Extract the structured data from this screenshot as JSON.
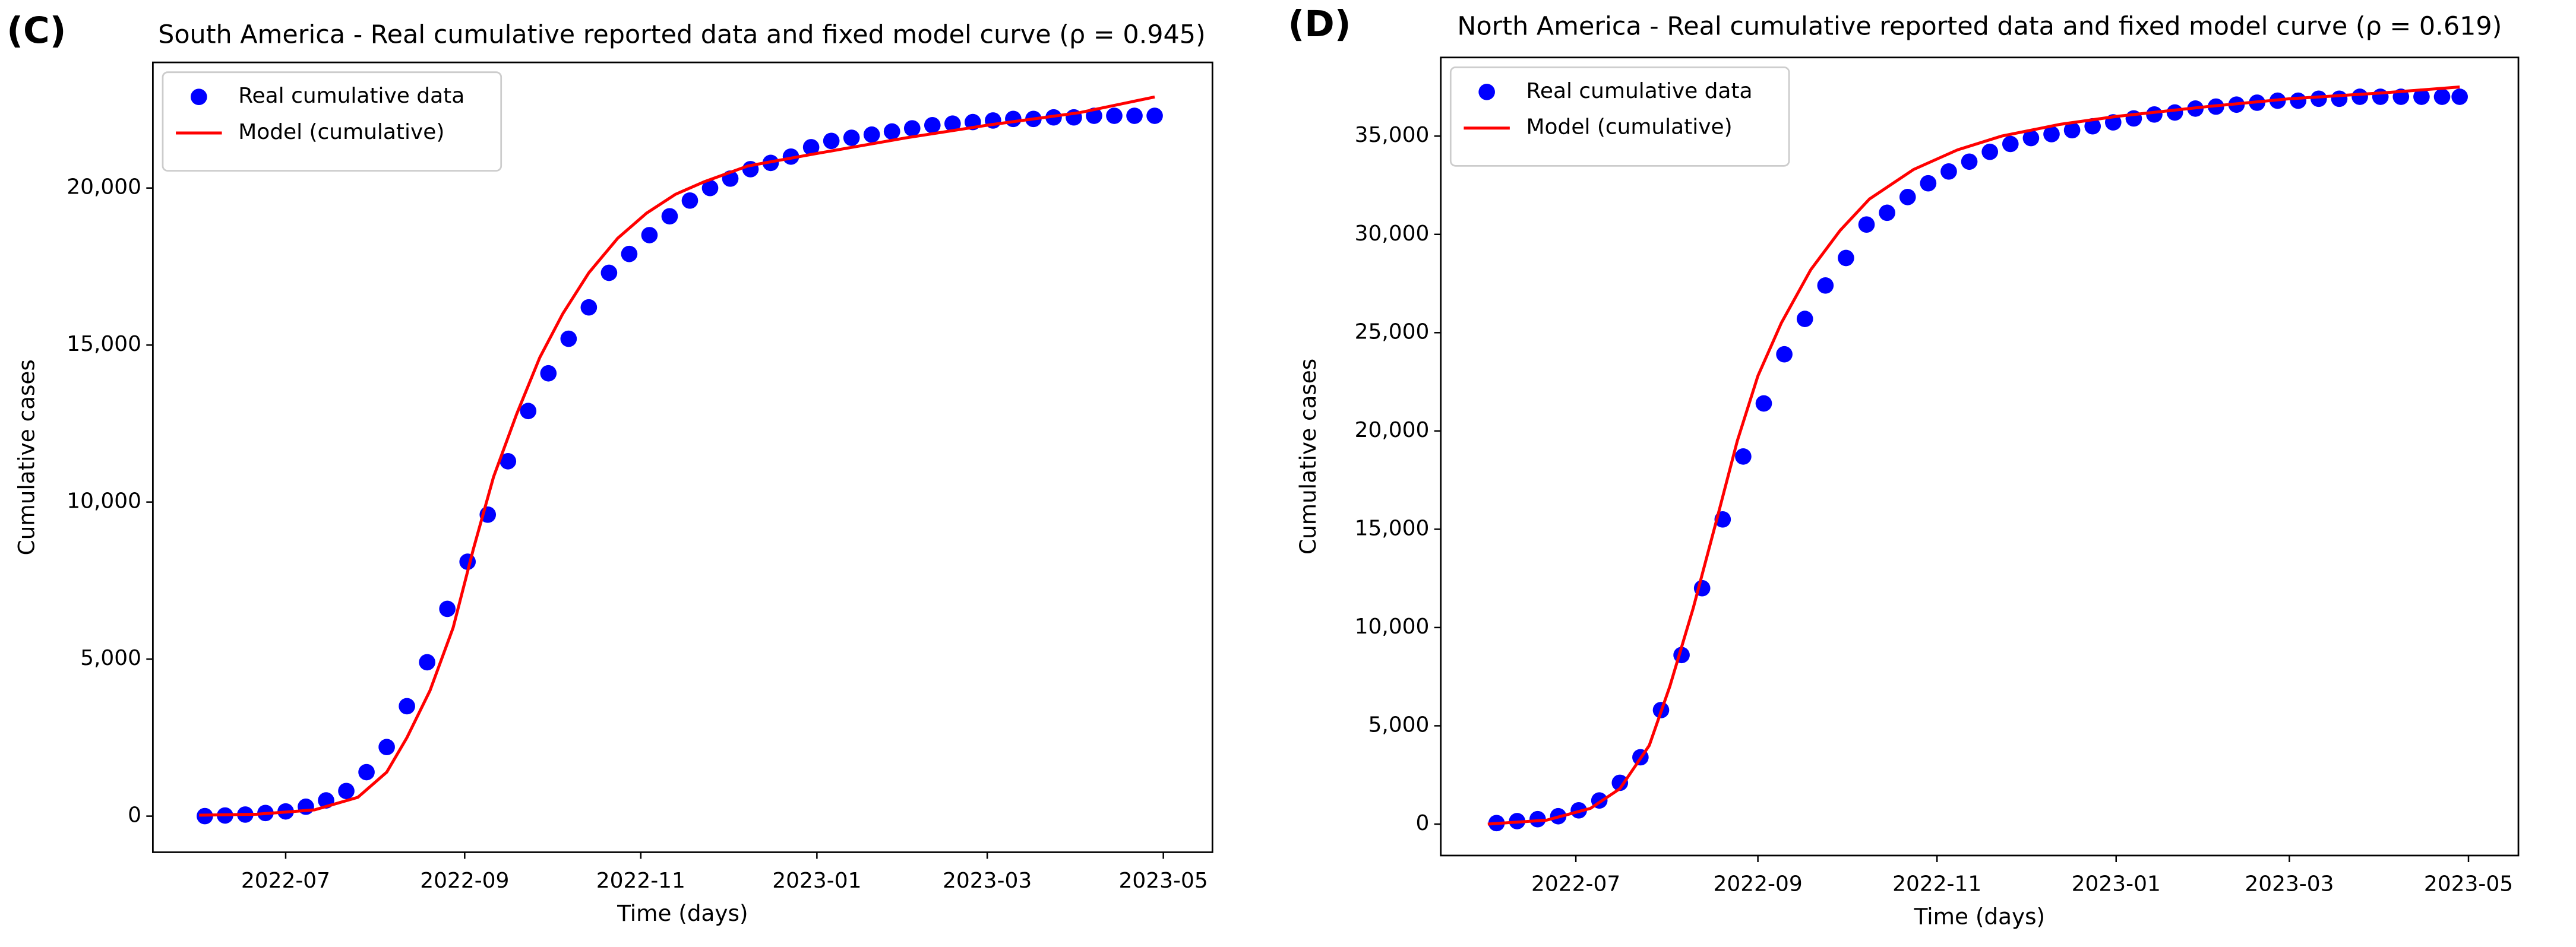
{
  "chart_data": [
    {
      "type": "line",
      "label": "(C)",
      "title": "South America - Real cumulative reported data and fixed model curve (ρ = 0.945)",
      "x_label": "Time (days)",
      "y_label": "Cumulative cases",
      "xlim": [
        -16,
        351
      ],
      "xticks": [
        {
          "value": 30,
          "label": "2022-07"
        },
        {
          "value": 92,
          "label": "2022-09"
        },
        {
          "value": 153,
          "label": "2022-11"
        },
        {
          "value": 214,
          "label": "2023-01"
        },
        {
          "value": 273,
          "label": "2023-03"
        },
        {
          "value": 334,
          "label": "2023-05"
        }
      ],
      "ylim": [
        -1150,
        24000
      ],
      "yticks": [
        0,
        {
          "value": 5000,
          "label": "5,000"
        },
        {
          "value": 10000,
          "label": "10,000"
        },
        {
          "value": 15000,
          "label": "15,000"
        },
        {
          "value": 20000,
          "label": "20,000"
        }
      ],
      "legend": "upper left",
      "grid": false,
      "series": [
        {
          "name": "Real cumulative data",
          "kind": "scatter",
          "color": "#0000ff",
          "x": [
            2,
            9,
            16,
            23,
            30,
            37,
            44,
            51,
            58,
            65,
            72,
            79,
            86,
            93,
            100,
            107,
            114,
            121,
            128,
            135,
            142,
            149,
            156,
            163,
            170,
            177,
            184,
            191,
            198,
            205,
            212,
            219,
            226,
            233,
            240,
            247,
            254,
            261,
            268,
            275,
            282,
            289,
            296,
            303,
            310,
            317,
            324,
            331
          ],
          "values": [
            0,
            20,
            50,
            100,
            150,
            300,
            500,
            800,
            1400,
            2200,
            3500,
            4900,
            6600,
            8100,
            9600,
            11300,
            12900,
            14100,
            15200,
            16200,
            17300,
            17900,
            18500,
            19100,
            19600,
            20000,
            20300,
            20600,
            20800,
            21000,
            21300,
            21500,
            21600,
            21700,
            21800,
            21900,
            22000,
            22050,
            22100,
            22150,
            22200,
            22200,
            22250,
            22250,
            22300,
            22300,
            22300,
            22300
          ]
        },
        {
          "name": "Model (cumulative)",
          "kind": "line",
          "color": "#ff0000",
          "x": [
            0,
            20,
            40,
            55,
            65,
            72,
            80,
            88,
            95,
            102,
            110,
            118,
            126,
            135,
            145,
            155,
            165,
            175,
            190,
            214,
            245,
            273,
            305,
            331
          ],
          "values": [
            30,
            60,
            200,
            600,
            1400,
            2500,
            4000,
            6000,
            8500,
            10800,
            12800,
            14600,
            16000,
            17300,
            18400,
            19200,
            19800,
            20200,
            20700,
            21100,
            21600,
            22000,
            22400,
            22900
          ]
        }
      ]
    },
    {
      "type": "line",
      "label": "(D)",
      "title": "North America - Real cumulative reported data and fixed model curve (ρ = 0.619)",
      "x_label": "Time (days)",
      "y_label": "Cumulative cases",
      "xlim": [
        -16,
        351
      ],
      "xticks": [
        {
          "value": 30,
          "label": "2022-07"
        },
        {
          "value": 92,
          "label": "2022-09"
        },
        {
          "value": 153,
          "label": "2022-11"
        },
        {
          "value": 214,
          "label": "2023-01"
        },
        {
          "value": 273,
          "label": "2023-03"
        },
        {
          "value": 334,
          "label": "2023-05"
        }
      ],
      "ylim": [
        -1600,
        39000
      ],
      "yticks": [
        0,
        {
          "value": 5000,
          "label": "5,000"
        },
        {
          "value": 10000,
          "label": "10,000"
        },
        {
          "value": 15000,
          "label": "15,000"
        },
        {
          "value": 20000,
          "label": "20,000"
        },
        {
          "value": 25000,
          "label": "25,000"
        },
        {
          "value": 30000,
          "label": "30,000"
        },
        {
          "value": 35000,
          "label": "35,000"
        }
      ],
      "legend": "upper left",
      "grid": false,
      "series": [
        {
          "name": "Real cumulative data",
          "kind": "scatter",
          "color": "#0000ff",
          "x": [
            3,
            10,
            17,
            24,
            31,
            38,
            45,
            52,
            59,
            66,
            73,
            80,
            87,
            94,
            101,
            108,
            115,
            122,
            129,
            136,
            143,
            150,
            157,
            164,
            171,
            178,
            185,
            192,
            199,
            206,
            213,
            220,
            227,
            234,
            241,
            248,
            255,
            262,
            269,
            276,
            283,
            290,
            297,
            304,
            311,
            318,
            325,
            331
          ],
          "values": [
            50,
            150,
            250,
            400,
            700,
            1200,
            2100,
            3400,
            5800,
            8600,
            12000,
            15500,
            18700,
            21400,
            23900,
            25700,
            27400,
            28800,
            30500,
            31100,
            31900,
            32600,
            33200,
            33700,
            34200,
            34600,
            34900,
            35100,
            35300,
            35500,
            35700,
            35900,
            36100,
            36200,
            36400,
            36500,
            36600,
            36700,
            36800,
            36800,
            36900,
            36900,
            37000,
            37000,
            37000,
            37000,
            37000,
            37000
          ]
        },
        {
          "name": "Model (cumulative)",
          "kind": "line",
          "color": "#ff0000",
          "x": [
            0,
            20,
            35,
            45,
            55,
            62,
            70,
            78,
            85,
            92,
            100,
            110,
            120,
            130,
            145,
            160,
            175,
            195,
            214,
            245,
            273,
            305,
            331
          ],
          "values": [
            0,
            200,
            800,
            1800,
            4000,
            7000,
            11000,
            15500,
            19500,
            22800,
            25500,
            28200,
            30200,
            31800,
            33300,
            34300,
            35000,
            35600,
            36000,
            36500,
            36900,
            37200,
            37500
          ]
        }
      ]
    }
  ]
}
